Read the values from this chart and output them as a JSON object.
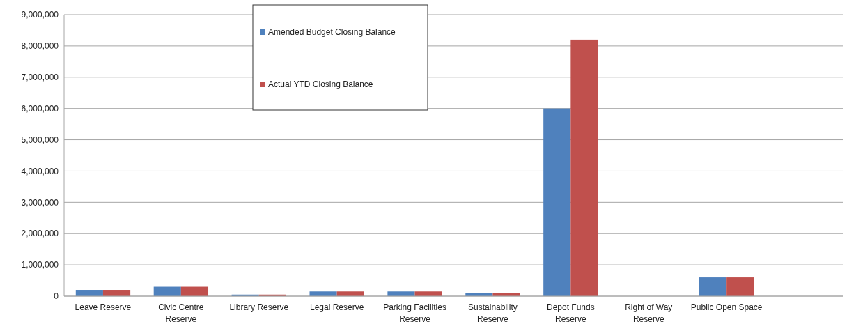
{
  "chart_data": {
    "type": "bar",
    "categories": [
      "Leave Reserve",
      "Civic Centre Reserve",
      "Library Reserve",
      "Legal Reserve",
      "Parking Facilities Reserve",
      "Sustainability Reserve",
      "Depot Funds Reserve",
      "Right of Way Reserve",
      "Public Open Space",
      null
    ],
    "series": [
      {
        "name": "Amended Budget Closing Balance",
        "color": "#4f81bd",
        "values": [
          200000,
          300000,
          50000,
          150000,
          150000,
          100000,
          6000000,
          0,
          600000,
          null
        ]
      },
      {
        "name": "Actual YTD Closing Balance",
        "color": "#c0504d",
        "values": [
          200000,
          300000,
          50000,
          150000,
          150000,
          100000,
          8200000,
          0,
          600000,
          null
        ]
      }
    ],
    "ylim": [
      0,
      9000000
    ],
    "yticks": [
      {
        "value": 0,
        "label": "0"
      },
      {
        "value": 1000000,
        "label": "1,000,000"
      },
      {
        "value": 2000000,
        "label": "2,000,000"
      },
      {
        "value": 3000000,
        "label": "3,000,000"
      },
      {
        "value": 4000000,
        "label": "4,000,000"
      },
      {
        "value": 5000000,
        "label": "5,000,000"
      },
      {
        "value": 6000000,
        "label": "6,000,000"
      },
      {
        "value": 7000000,
        "label": "7,000,000"
      },
      {
        "value": 8000000,
        "label": "8,000,000"
      },
      {
        "value": 9000000,
        "label": "9,000,000"
      }
    ],
    "grid": "y",
    "legend": "top"
  }
}
